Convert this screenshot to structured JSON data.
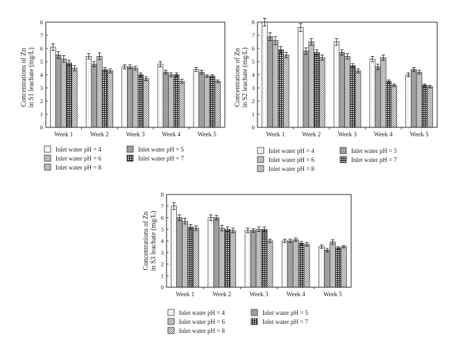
{
  "legend_labels": [
    "Inlet water pH = 4",
    "Inlet water pH = 5",
    "Inlet water pH = 6",
    "Inlet water pH = 7",
    "Inlet water pH = 8"
  ],
  "chart_data": [
    {
      "type": "bar",
      "ylabel_lines": [
        "Concentrations of Zn",
        "in S1 leachate (mg/L)"
      ],
      "categories": [
        "Week 1",
        "Week 2",
        "Week 3",
        "Week 4",
        "Week 5"
      ],
      "ylim": [
        0,
        8
      ],
      "yticks": [
        "0",
        "1",
        "2",
        "3",
        "4",
        "5",
        "6",
        "7",
        "8"
      ],
      "series": [
        {
          "name": "Inlet water pH = 4",
          "values": [
            6.1,
            5.4,
            4.6,
            4.8,
            4.4
          ],
          "errors": [
            0.25,
            0.2,
            0.15,
            0.2,
            0.15
          ]
        },
        {
          "name": "Inlet water pH = 5",
          "values": [
            5.5,
            4.8,
            4.6,
            4.2,
            4.2
          ],
          "errors": [
            0.25,
            0.2,
            0.15,
            0.15,
            0.15
          ]
        },
        {
          "name": "Inlet water pH = 6",
          "values": [
            5.2,
            5.4,
            4.5,
            4.0,
            3.9
          ],
          "errors": [
            0.25,
            0.25,
            0.15,
            0.15,
            0.1
          ]
        },
        {
          "name": "Inlet water pH = 7",
          "values": [
            4.9,
            4.4,
            4.0,
            4.0,
            3.9
          ],
          "errors": [
            0.2,
            0.15,
            0.15,
            0.15,
            0.1
          ]
        },
        {
          "name": "Inlet water pH = 8",
          "values": [
            4.5,
            4.3,
            3.7,
            3.5,
            3.5
          ],
          "errors": [
            0.2,
            0.15,
            0.15,
            0.15,
            0.1
          ]
        }
      ]
    },
    {
      "type": "bar",
      "ylabel_lines": [
        "Concentrations of Zn",
        "in S2 leachate (mg/L)"
      ],
      "categories": [
        "Week 1",
        "Week 2",
        "Week 3",
        "Week 4",
        "Week 5"
      ],
      "ylim": [
        0,
        8
      ],
      "yticks": [
        "0",
        "1",
        "2",
        "3",
        "4",
        "5",
        "6",
        "7",
        "8"
      ],
      "series": [
        {
          "name": "Inlet water pH = 4",
          "values": [
            8.0,
            7.6,
            6.5,
            5.2,
            4.0
          ],
          "errors": [
            0.3,
            0.3,
            0.25,
            0.2,
            0.15
          ]
        },
        {
          "name": "Inlet water pH = 5",
          "values": [
            6.9,
            5.8,
            5.7,
            4.6,
            4.4
          ],
          "errors": [
            0.3,
            0.25,
            0.2,
            0.2,
            0.15
          ]
        },
        {
          "name": "Inlet water pH = 6",
          "values": [
            6.6,
            6.5,
            5.4,
            5.3,
            4.2
          ],
          "errors": [
            0.3,
            0.25,
            0.2,
            0.2,
            0.15
          ]
        },
        {
          "name": "Inlet water pH = 7",
          "values": [
            5.9,
            5.7,
            4.7,
            3.5,
            3.2
          ],
          "errors": [
            0.25,
            0.2,
            0.15,
            0.1,
            0.1
          ]
        },
        {
          "name": "Inlet water pH = 8",
          "values": [
            5.5,
            5.3,
            4.3,
            3.2,
            3.1
          ],
          "errors": [
            0.2,
            0.2,
            0.15,
            0.1,
            0.1
          ]
        }
      ]
    },
    {
      "type": "bar",
      "ylabel_lines": [
        "Concentrations of Zn",
        "in S3 leachate (mg/L)"
      ],
      "categories": [
        "Week 1",
        "Week 2",
        "Week 3",
        "Week 4",
        "Week 5"
      ],
      "ylim": [
        0,
        8
      ],
      "yticks": [
        "0",
        "1",
        "2",
        "3",
        "4",
        "5",
        "6",
        "7",
        "8"
      ],
      "series": [
        {
          "name": "Inlet water pH = 4",
          "values": [
            7.0,
            6.0,
            4.9,
            4.0,
            3.5
          ],
          "errors": [
            0.3,
            0.25,
            0.2,
            0.15,
            0.15
          ]
        },
        {
          "name": "Inlet water pH = 5",
          "values": [
            6.0,
            6.0,
            4.9,
            4.0,
            3.2
          ],
          "errors": [
            0.25,
            0.2,
            0.15,
            0.15,
            0.15
          ]
        },
        {
          "name": "Inlet water pH = 6",
          "values": [
            5.7,
            5.1,
            5.0,
            4.1,
            3.9
          ],
          "errors": [
            0.25,
            0.25,
            0.2,
            0.15,
            0.2
          ]
        },
        {
          "name": "Inlet water pH = 7",
          "values": [
            5.2,
            5.0,
            5.0,
            3.8,
            3.4
          ],
          "errors": [
            0.2,
            0.2,
            0.2,
            0.15,
            0.1
          ]
        },
        {
          "name": "Inlet water pH = 8",
          "values": [
            5.1,
            4.9,
            4.0,
            3.7,
            3.5
          ],
          "errors": [
            0.2,
            0.2,
            0.15,
            0.15,
            0.1
          ]
        }
      ]
    }
  ]
}
